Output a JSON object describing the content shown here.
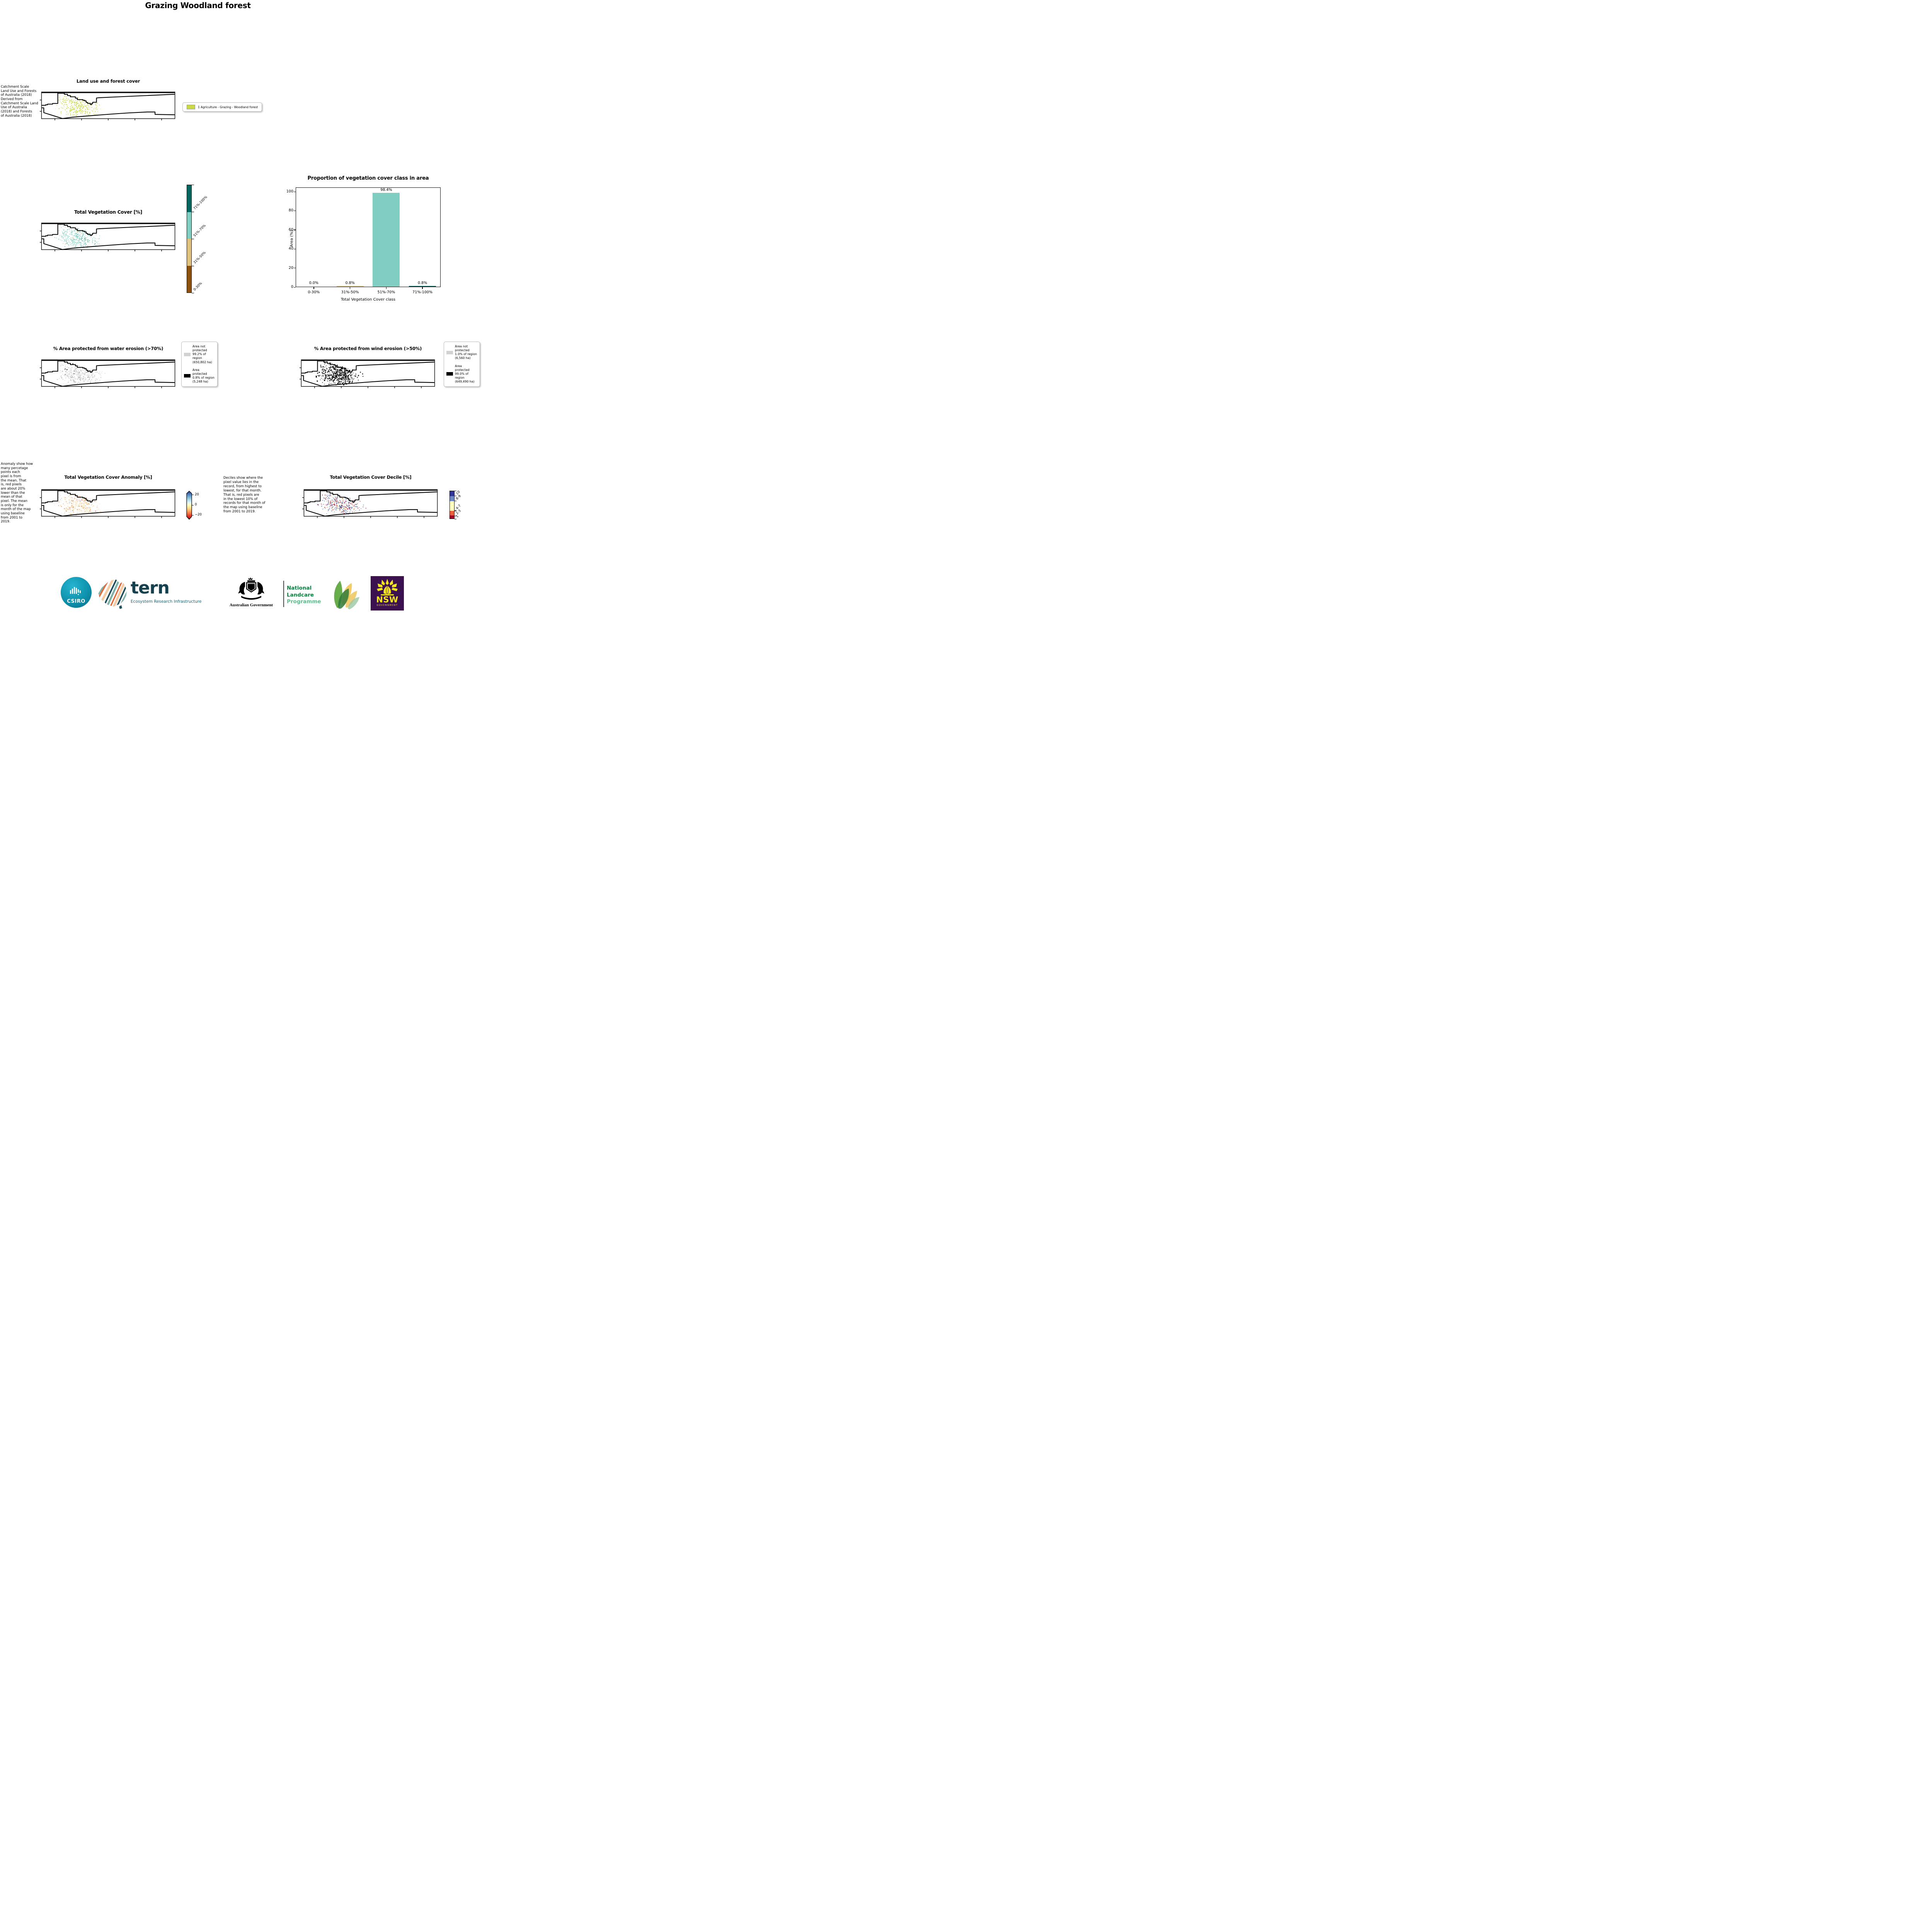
{
  "page": {
    "title": "Grazing Woodland forest"
  },
  "land_use": {
    "side_text": "Catchment Scale\nLand Use and Forests\nof Australia (2018)\nDerived from\nCatchment Scale Land\nUse of Australia\n(2018) and Forests\nof Australia (2018)",
    "title": "Land use and forest cover",
    "legend_label": "1 Agriculture - Grazing - Woodland forest",
    "legend_color": "#cbd944",
    "dots": {
      "count": 360,
      "sizes": [
        3,
        6
      ],
      "colors": {
        "#cbd944": 1
      }
    }
  },
  "veg_cover": {
    "title": "Total Vegetation Cover [%]",
    "classes": [
      {
        "label": "71%-100%",
        "color": "#01665e"
      },
      {
        "label": "51%-70%",
        "color": "#80cdc1"
      },
      {
        "label": "31%-50%",
        "color": "#dfc27d"
      },
      {
        "label": "0-30%",
        "color": "#8c510a"
      }
    ],
    "dots": {
      "count": 400,
      "sizes": [
        3,
        6
      ],
      "colors": {
        "#80cdc1": 0.95,
        "#01665e": 0.03,
        "#dfc27d": 0.02
      }
    }
  },
  "chart_data": {
    "type": "bar",
    "title": "Proportion of vegetation cover class in area",
    "categories": [
      "0-30%",
      "31%-50%",
      "51%-70%",
      "71%-100%"
    ],
    "values": [
      0.0,
      0.8,
      98.4,
      0.8
    ],
    "value_labels": [
      "0.0%",
      "0.8%",
      "98.4%",
      "0.8%"
    ],
    "bar_colors": [
      "#8c510a",
      "#dfc27d",
      "#80cdc1",
      "#01665e"
    ],
    "xlabel": "Total Vegetation Cover class",
    "ylabel": "Area (%)",
    "ylim": [
      0,
      100
    ],
    "yticks": [
      "0",
      "20",
      "40",
      "60",
      "80",
      "100"
    ],
    "legend_position": "none",
    "grid": false
  },
  "water_erosion": {
    "title": "% Area protected from water erosion (>70%)",
    "legend": [
      {
        "color": "#d2d2d2",
        "text": "Area not protected 99.2% of region (650,802 ha)"
      },
      {
        "color": "#000000",
        "text": "Area protected 0.8% of region (5,248 ha)"
      }
    ],
    "dots": {
      "count": 380,
      "sizes": [
        3,
        7
      ],
      "colors": {
        "#d2d2d2": 0.9,
        "#9a9a9a": 0.06,
        "#1a1a1a": 0.04
      }
    }
  },
  "wind_erosion": {
    "title": "% Area protected from wind erosion (>50%)",
    "legend": [
      {
        "color": "#d2d2d2",
        "text": "Area not protected 1.0% of region (6,560 ha)"
      },
      {
        "color": "#000000",
        "text": "Area protected 99.0% of region (649,490 ha)"
      }
    ],
    "dots": {
      "count": 430,
      "sizes": [
        3,
        9
      ],
      "colors": {
        "#111111": 1
      }
    }
  },
  "anomaly": {
    "side_text": "Anomaly show how\nmany percetage\npoints each\npixel is from\nthe mean. That\nis, red pixels\nare about 20%\nlower than the\nmean of that\npixel. The mean\nis only for the\nmonth of the map\nusing baseline\nfrom 2001 to\n2019.",
    "title": "Total Vegetation Cover Anomaly [%]",
    "colorbar_ticks": [
      "20",
      "0",
      "−20"
    ],
    "gradient": [
      "#313695",
      "#4575b4",
      "#74add1",
      "#abd9e9",
      "#e0f3f8",
      "#ffffbf",
      "#fee090",
      "#fdae61",
      "#f46d43",
      "#d73027",
      "#a50026"
    ],
    "dots": {
      "count": 340,
      "sizes": [
        3,
        6
      ],
      "colors": {
        "#fdd992": 0.28,
        "#fee8a9": 0.25,
        "#fcb96d": 0.18,
        "#f59053": 0.1,
        "#dd4b33": 0.06,
        "#d8e9db": 0.07,
        "#bcd8ea": 0.06
      }
    }
  },
  "decile": {
    "side_text": "Deciles show where the\npixel value lies in the\nrecord, from highest to\nlowest, for that month.\nThat is, red pixels are\nin the lowest 10% of\nrecords for that month of\nthe map using baseline\nfrom 2001 to 2019.",
    "title": "Total Vegetation Cover Decile [%]",
    "segments": [
      {
        "label": "10",
        "color": "#313695",
        "frac": 0.185
      },
      {
        "label": "8-9",
        "color": "#6e87c5",
        "frac": 0.18
      },
      {
        "label": "4-7",
        "color": "#ffffbf",
        "frac": 0.347
      },
      {
        "label": "2-3",
        "color": "#e8603c",
        "frac": 0.18
      },
      {
        "label": "1",
        "color": "#a50026",
        "frac": 0.108
      }
    ],
    "dots": {
      "count": 420,
      "sizes": [
        3,
        6
      ],
      "colors": {
        "#31499c": 0.3,
        "#6e87c5": 0.18,
        "#a50026": 0.14,
        "#d7382c": 0.1,
        "#e8603c": 0.12,
        "#ffffbf": 0.16
      }
    }
  },
  "logos": {
    "csiro": {
      "label": "CSIRO"
    },
    "tern": {
      "name": "tern",
      "subtitle": "Ecosystem Research Infrastructure"
    },
    "aus_gov": {
      "label": "Australian Government"
    },
    "landcare": {
      "line1": "National",
      "line2": "Landcare",
      "line3": "Programme",
      "color_strong": "#00853e",
      "color_light": "#5fbe8c"
    },
    "nsw": {
      "name": "NSW",
      "caption": "GOVERNMENT",
      "bg": "#3b1150",
      "fg": "#f5e71e"
    }
  }
}
